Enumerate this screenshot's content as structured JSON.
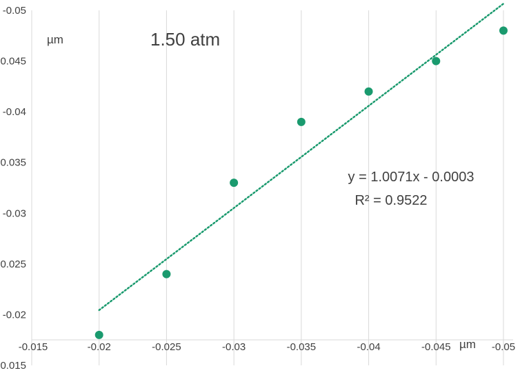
{
  "chart_data": {
    "type": "scatter",
    "title": "",
    "annotation": "1.50 atm",
    "xlabel": "µm",
    "ylabel": "µm",
    "xlim": [
      -0.015,
      -0.05
    ],
    "ylim": [
      -0.015,
      -0.05
    ],
    "x_ticks": [
      "-0.015",
      "-0.02",
      "-0.025",
      "-0.03",
      "-0.035",
      "-0.04",
      "-0.045",
      "-0.05"
    ],
    "y_ticks": [
      "-0.015",
      "-0.02",
      "-0.025",
      "-0.03",
      "-0.035",
      "-0.04",
      "-0.045",
      "-0.05"
    ],
    "grid": "vertical",
    "series": [
      {
        "x": [
          -0.02,
          -0.025,
          -0.03,
          -0.035,
          -0.04,
          -0.045,
          -0.05
        ],
        "y": [
          -0.018,
          -0.024,
          -0.033,
          -0.039,
          -0.042,
          -0.045,
          -0.048
        ],
        "color": "#1a9a6e"
      }
    ],
    "trendline": {
      "type": "linear",
      "slope": 1.0071,
      "intercept": -0.0003,
      "x_range": [
        -0.02,
        -0.05
      ],
      "color": "#1a9a6e",
      "style": "dotted",
      "equation_label": "y = 1.0071x - 0.0003",
      "r2_label": "R² = 0.9522"
    }
  }
}
